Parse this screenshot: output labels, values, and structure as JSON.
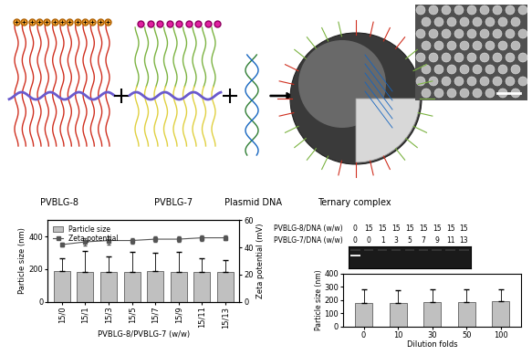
{
  "schematic": {
    "labels": [
      "PVBLG-8",
      "PVBLG-7",
      "Plasmid DNA",
      "Ternary complex"
    ]
  },
  "gel": {
    "rows": [
      {
        "label": "PVBLG-8/DNA (w/w)",
        "values": [
          0,
          15,
          15,
          15,
          15,
          15,
          15,
          15,
          15
        ]
      },
      {
        "label": "PVBLG-7/DNA (w/w)",
        "values": [
          0,
          0,
          1,
          3,
          5,
          7,
          9,
          11,
          13
        ]
      }
    ]
  },
  "chart_data": [
    {
      "type": "bar",
      "categories": [
        "15/0",
        "15/1",
        "15/3",
        "15/5",
        "15/7",
        "15/9",
        "15/11",
        "15/13"
      ],
      "series": [
        {
          "name": "Particle size",
          "type": "bar",
          "color": "#c0c0c0",
          "values": [
            188,
            185,
            182,
            183,
            190,
            184,
            180,
            180
          ],
          "errors": [
            77,
            125,
            98,
            122,
            110,
            121,
            85,
            75
          ]
        },
        {
          "name": "Zeta potential",
          "type": "line",
          "axis": "y2",
          "color": "#555555",
          "marker": "square",
          "values": [
            42,
            44,
            45,
            45,
            46,
            46,
            47,
            47
          ],
          "errors": [
            1.5,
            2.5,
            3,
            2,
            2,
            2,
            2,
            1.5
          ]
        }
      ],
      "x_label": "PVBLG-8/PVBLG-7 (w/w)",
      "y_label": "Particle size (nm)",
      "y2_label": "Zeta potential (mV)",
      "ylim": [
        0,
        500
      ],
      "yticks": [
        0,
        200,
        400
      ],
      "y2lim": [
        0,
        60
      ],
      "y2ticks": [
        0,
        20,
        40,
        60
      ],
      "legend": "upper left"
    },
    {
      "type": "bar",
      "categories": [
        "0",
        "10",
        "30",
        "50",
        "100"
      ],
      "values": [
        180,
        180,
        183,
        183,
        190
      ],
      "errors": [
        100,
        95,
        95,
        95,
        90
      ],
      "color": "#c0c0c0",
      "x_label": "Dilution folds",
      "y_label": "Particle size (nm)",
      "ylim": [
        0,
        400
      ],
      "yticks": [
        0,
        100,
        200,
        300,
        400
      ]
    }
  ]
}
